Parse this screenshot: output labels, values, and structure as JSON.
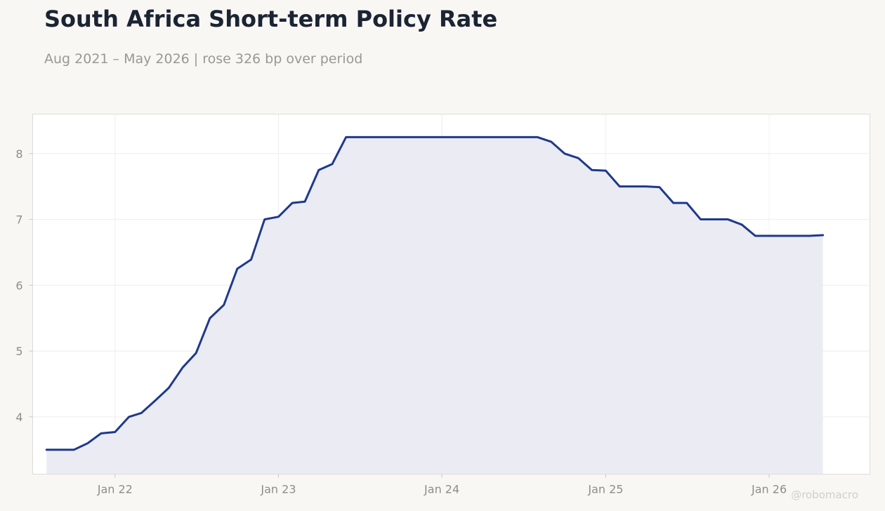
{
  "header": {
    "title": "South Africa Short-term Policy Rate",
    "subtitle": "Aug 2021 – May 2026 | rose 326 bp over period"
  },
  "watermark": "@robomacro",
  "colors": {
    "line": "#1f3a8a",
    "area": "#e9eaf2",
    "grid": "#eeeeee",
    "tick_text": "#8f8d88",
    "plot_border": "#dcdcd8",
    "background": "#f8f7f4"
  },
  "chart_data": {
    "type": "area",
    "title": "South Africa Short-term Policy Rate",
    "subtitle": "Aug 2021 – May 2026 | rose 326 bp over period",
    "xlabel": "",
    "ylabel": "",
    "grid": true,
    "xlim": [
      "2021-07-01",
      "2026-08-14"
    ],
    "ylim": [
      3.13,
      8.6
    ],
    "x_ticks": [
      {
        "date": "2022-01-01",
        "label": "Jan 22"
      },
      {
        "date": "2023-01-01",
        "label": "Jan 23"
      },
      {
        "date": "2024-01-01",
        "label": "Jan 24"
      },
      {
        "date": "2025-01-01",
        "label": "Jan 25"
      },
      {
        "date": "2026-01-01",
        "label": "Jan 26"
      }
    ],
    "y_ticks": [
      4,
      5,
      6,
      7,
      8
    ],
    "series": [
      {
        "points": [
          [
            "2021-08-01",
            3.5
          ],
          [
            "2021-09-01",
            3.5
          ],
          [
            "2021-10-01",
            3.5
          ],
          [
            "2021-11-01",
            3.6
          ],
          [
            "2021-12-01",
            3.75
          ],
          [
            "2022-01-01",
            3.77
          ],
          [
            "2022-02-01",
            4.0
          ],
          [
            "2022-03-01",
            4.06
          ],
          [
            "2022-04-01",
            4.25
          ],
          [
            "2022-05-01",
            4.44
          ],
          [
            "2022-06-01",
            4.75
          ],
          [
            "2022-07-01",
            4.97
          ],
          [
            "2022-08-01",
            5.5
          ],
          [
            "2022-09-01",
            5.7
          ],
          [
            "2022-10-01",
            6.25
          ],
          [
            "2022-11-01",
            6.39
          ],
          [
            "2022-12-01",
            7.0
          ],
          [
            "2023-01-01",
            7.04
          ],
          [
            "2023-02-01",
            7.25
          ],
          [
            "2023-03-01",
            7.27
          ],
          [
            "2023-04-01",
            7.75
          ],
          [
            "2023-05-01",
            7.84
          ],
          [
            "2023-06-01",
            8.25
          ],
          [
            "2023-07-01",
            8.25
          ],
          [
            "2023-08-01",
            8.25
          ],
          [
            "2023-09-01",
            8.25
          ],
          [
            "2023-10-01",
            8.25
          ],
          [
            "2023-11-01",
            8.25
          ],
          [
            "2023-12-01",
            8.25
          ],
          [
            "2024-01-01",
            8.25
          ],
          [
            "2024-02-01",
            8.25
          ],
          [
            "2024-03-01",
            8.25
          ],
          [
            "2024-04-01",
            8.25
          ],
          [
            "2024-05-01",
            8.25
          ],
          [
            "2024-06-01",
            8.25
          ],
          [
            "2024-07-01",
            8.25
          ],
          [
            "2024-08-01",
            8.25
          ],
          [
            "2024-09-01",
            8.18
          ],
          [
            "2024-10-01",
            8.0
          ],
          [
            "2024-11-01",
            7.93
          ],
          [
            "2024-12-01",
            7.75
          ],
          [
            "2025-01-01",
            7.74
          ],
          [
            "2025-02-01",
            7.5
          ],
          [
            "2025-03-01",
            7.5
          ],
          [
            "2025-04-01",
            7.5
          ],
          [
            "2025-05-01",
            7.49
          ],
          [
            "2025-06-01",
            7.25
          ],
          [
            "2025-07-01",
            7.25
          ],
          [
            "2025-08-01",
            7.0
          ],
          [
            "2025-09-01",
            7.0
          ],
          [
            "2025-10-01",
            7.0
          ],
          [
            "2025-11-01",
            6.92
          ],
          [
            "2025-12-01",
            6.75
          ],
          [
            "2026-01-01",
            6.75
          ],
          [
            "2026-02-01",
            6.75
          ],
          [
            "2026-03-01",
            6.75
          ],
          [
            "2026-04-01",
            6.75
          ],
          [
            "2026-05-01",
            6.76
          ]
        ]
      }
    ]
  }
}
